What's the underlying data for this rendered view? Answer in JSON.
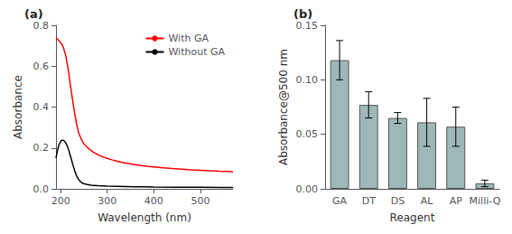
{
  "chart_data": [
    {
      "type": "line",
      "title": "(a)",
      "xlabel": "Wavelength (nm)",
      "ylabel": "Absorbance",
      "xlim": [
        190,
        570
      ],
      "ylim": [
        0,
        0.8
      ],
      "xticks": [
        200,
        300,
        400,
        500
      ],
      "yticks": [
        {
          "value": 0,
          "label": "0.0"
        },
        0.2,
        0.4,
        0.6,
        0.8
      ],
      "grid": false,
      "legend": "upper right",
      "series": [
        {
          "name": "With GA",
          "color": "red",
          "x": [
            190,
            192,
            194,
            196,
            198,
            200,
            202,
            204,
            206,
            208,
            210,
            212,
            215,
            218,
            220,
            223,
            226,
            230,
            234,
            238,
            242,
            246,
            250,
            255,
            260,
            265,
            270,
            275,
            280,
            285,
            290,
            295,
            300,
            310,
            320,
            330,
            340,
            350,
            360,
            370,
            380,
            390,
            400,
            420,
            440,
            460,
            480,
            500,
            520,
            540,
            560,
            570
          ],
          "values": [
            0.74,
            0.735,
            0.73,
            0.725,
            0.72,
            0.715,
            0.71,
            0.7,
            0.69,
            0.675,
            0.66,
            0.64,
            0.6,
            0.56,
            0.52,
            0.475,
            0.43,
            0.37,
            0.32,
            0.28,
            0.255,
            0.235,
            0.22,
            0.208,
            0.197,
            0.188,
            0.18,
            0.173,
            0.167,
            0.162,
            0.157,
            0.153,
            0.149,
            0.142,
            0.136,
            0.13,
            0.126,
            0.122,
            0.118,
            0.115,
            0.112,
            0.109,
            0.107,
            0.103,
            0.099,
            0.096,
            0.093,
            0.091,
            0.088,
            0.086,
            0.085,
            0.083
          ]
        },
        {
          "name": "Without GA",
          "color": "black",
          "x": [
            190,
            192,
            194,
            196,
            198,
            200,
            202,
            204,
            206,
            208,
            210,
            212,
            215,
            218,
            220,
            223,
            226,
            230,
            234,
            238,
            242,
            246,
            250,
            255,
            260,
            265,
            270,
            280,
            290,
            300,
            320,
            340,
            360,
            380,
            400,
            450,
            500,
            550,
            570
          ],
          "values": [
            0.15,
            0.175,
            0.195,
            0.212,
            0.222,
            0.232,
            0.237,
            0.238,
            0.237,
            0.233,
            0.228,
            0.22,
            0.205,
            0.185,
            0.168,
            0.145,
            0.12,
            0.09,
            0.065,
            0.048,
            0.036,
            0.029,
            0.025,
            0.022,
            0.02,
            0.018,
            0.017,
            0.015,
            0.014,
            0.013,
            0.012,
            0.011,
            0.01,
            0.01,
            0.009,
            0.008,
            0.008,
            0.007,
            0.007
          ]
        }
      ]
    },
    {
      "type": "bar",
      "title": "(b)",
      "xlabel": "Reagent",
      "ylabel": "Absorbance@500 nm",
      "categories": [
        "GA",
        "DT",
        "DS",
        "AL",
        "AP",
        "Milli-Q"
      ],
      "values": [
        0.118,
        0.077,
        0.065,
        0.061,
        0.057,
        0.005
      ],
      "errors": [
        0.018,
        0.012,
        0.005,
        0.022,
        0.018,
        0.003
      ],
      "color": "#9eb8b8",
      "ylim": [
        0,
        0.15
      ],
      "yticks": [
        {
          "value": 0,
          "label": "0.00"
        },
        0.05,
        {
          "value": 0.1,
          "label": "0.10"
        },
        0.15
      ],
      "grid": false
    }
  ]
}
